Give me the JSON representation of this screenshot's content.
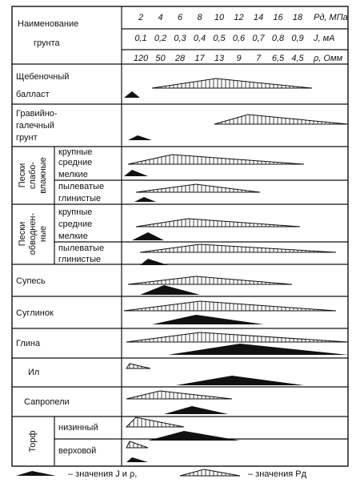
{
  "header": {
    "title_lines": [
      "Наименование",
      "грунта"
    ],
    "scales": [
      {
        "ticks": [
          2,
          4,
          6,
          8,
          10,
          12,
          14,
          16,
          18
        ],
        "unit": "Pд, МПа"
      },
      {
        "ticks": [
          "0,1",
          "0,2",
          "0,3",
          "0,4",
          "0,5",
          "0,6",
          "0,7",
          "0,8",
          "0,9"
        ],
        "unit": "J, мА"
      },
      {
        "ticks": [
          120,
          50,
          28,
          17,
          13,
          9,
          7,
          "6,5",
          "4,5"
        ],
        "unit": "ρ, Омм"
      }
    ]
  },
  "rows": [
    {
      "lines": [
        "Щебеночный",
        "балласт"
      ]
    },
    {
      "lines": [
        "Гравийно-",
        "галечный",
        "грунт"
      ]
    },
    {
      "group": [
        "Пески",
        "слабо-",
        "влажные"
      ],
      "items": [
        "крупные",
        "средние",
        "мелкие",
        "пылеватые",
        "глинистые"
      ]
    },
    {
      "group": [
        "Пески",
        "обводнен-",
        "ные"
      ],
      "items": [
        "крупные",
        "средние",
        "мелкие",
        "пылеватые",
        "глинистые"
      ]
    },
    {
      "lines": [
        "Супесь"
      ]
    },
    {
      "lines": [
        "Суглинок"
      ]
    },
    {
      "lines": [
        "Глина"
      ]
    },
    {
      "lines": [
        "Ил"
      ]
    },
    {
      "lines": [
        "Сапропели"
      ]
    },
    {
      "group": [
        "Торф"
      ],
      "items": [
        "низинный",
        "верховой"
      ]
    }
  ],
  "legend": [
    "– значения J и ρ,",
    "– значения Pд"
  ]
}
